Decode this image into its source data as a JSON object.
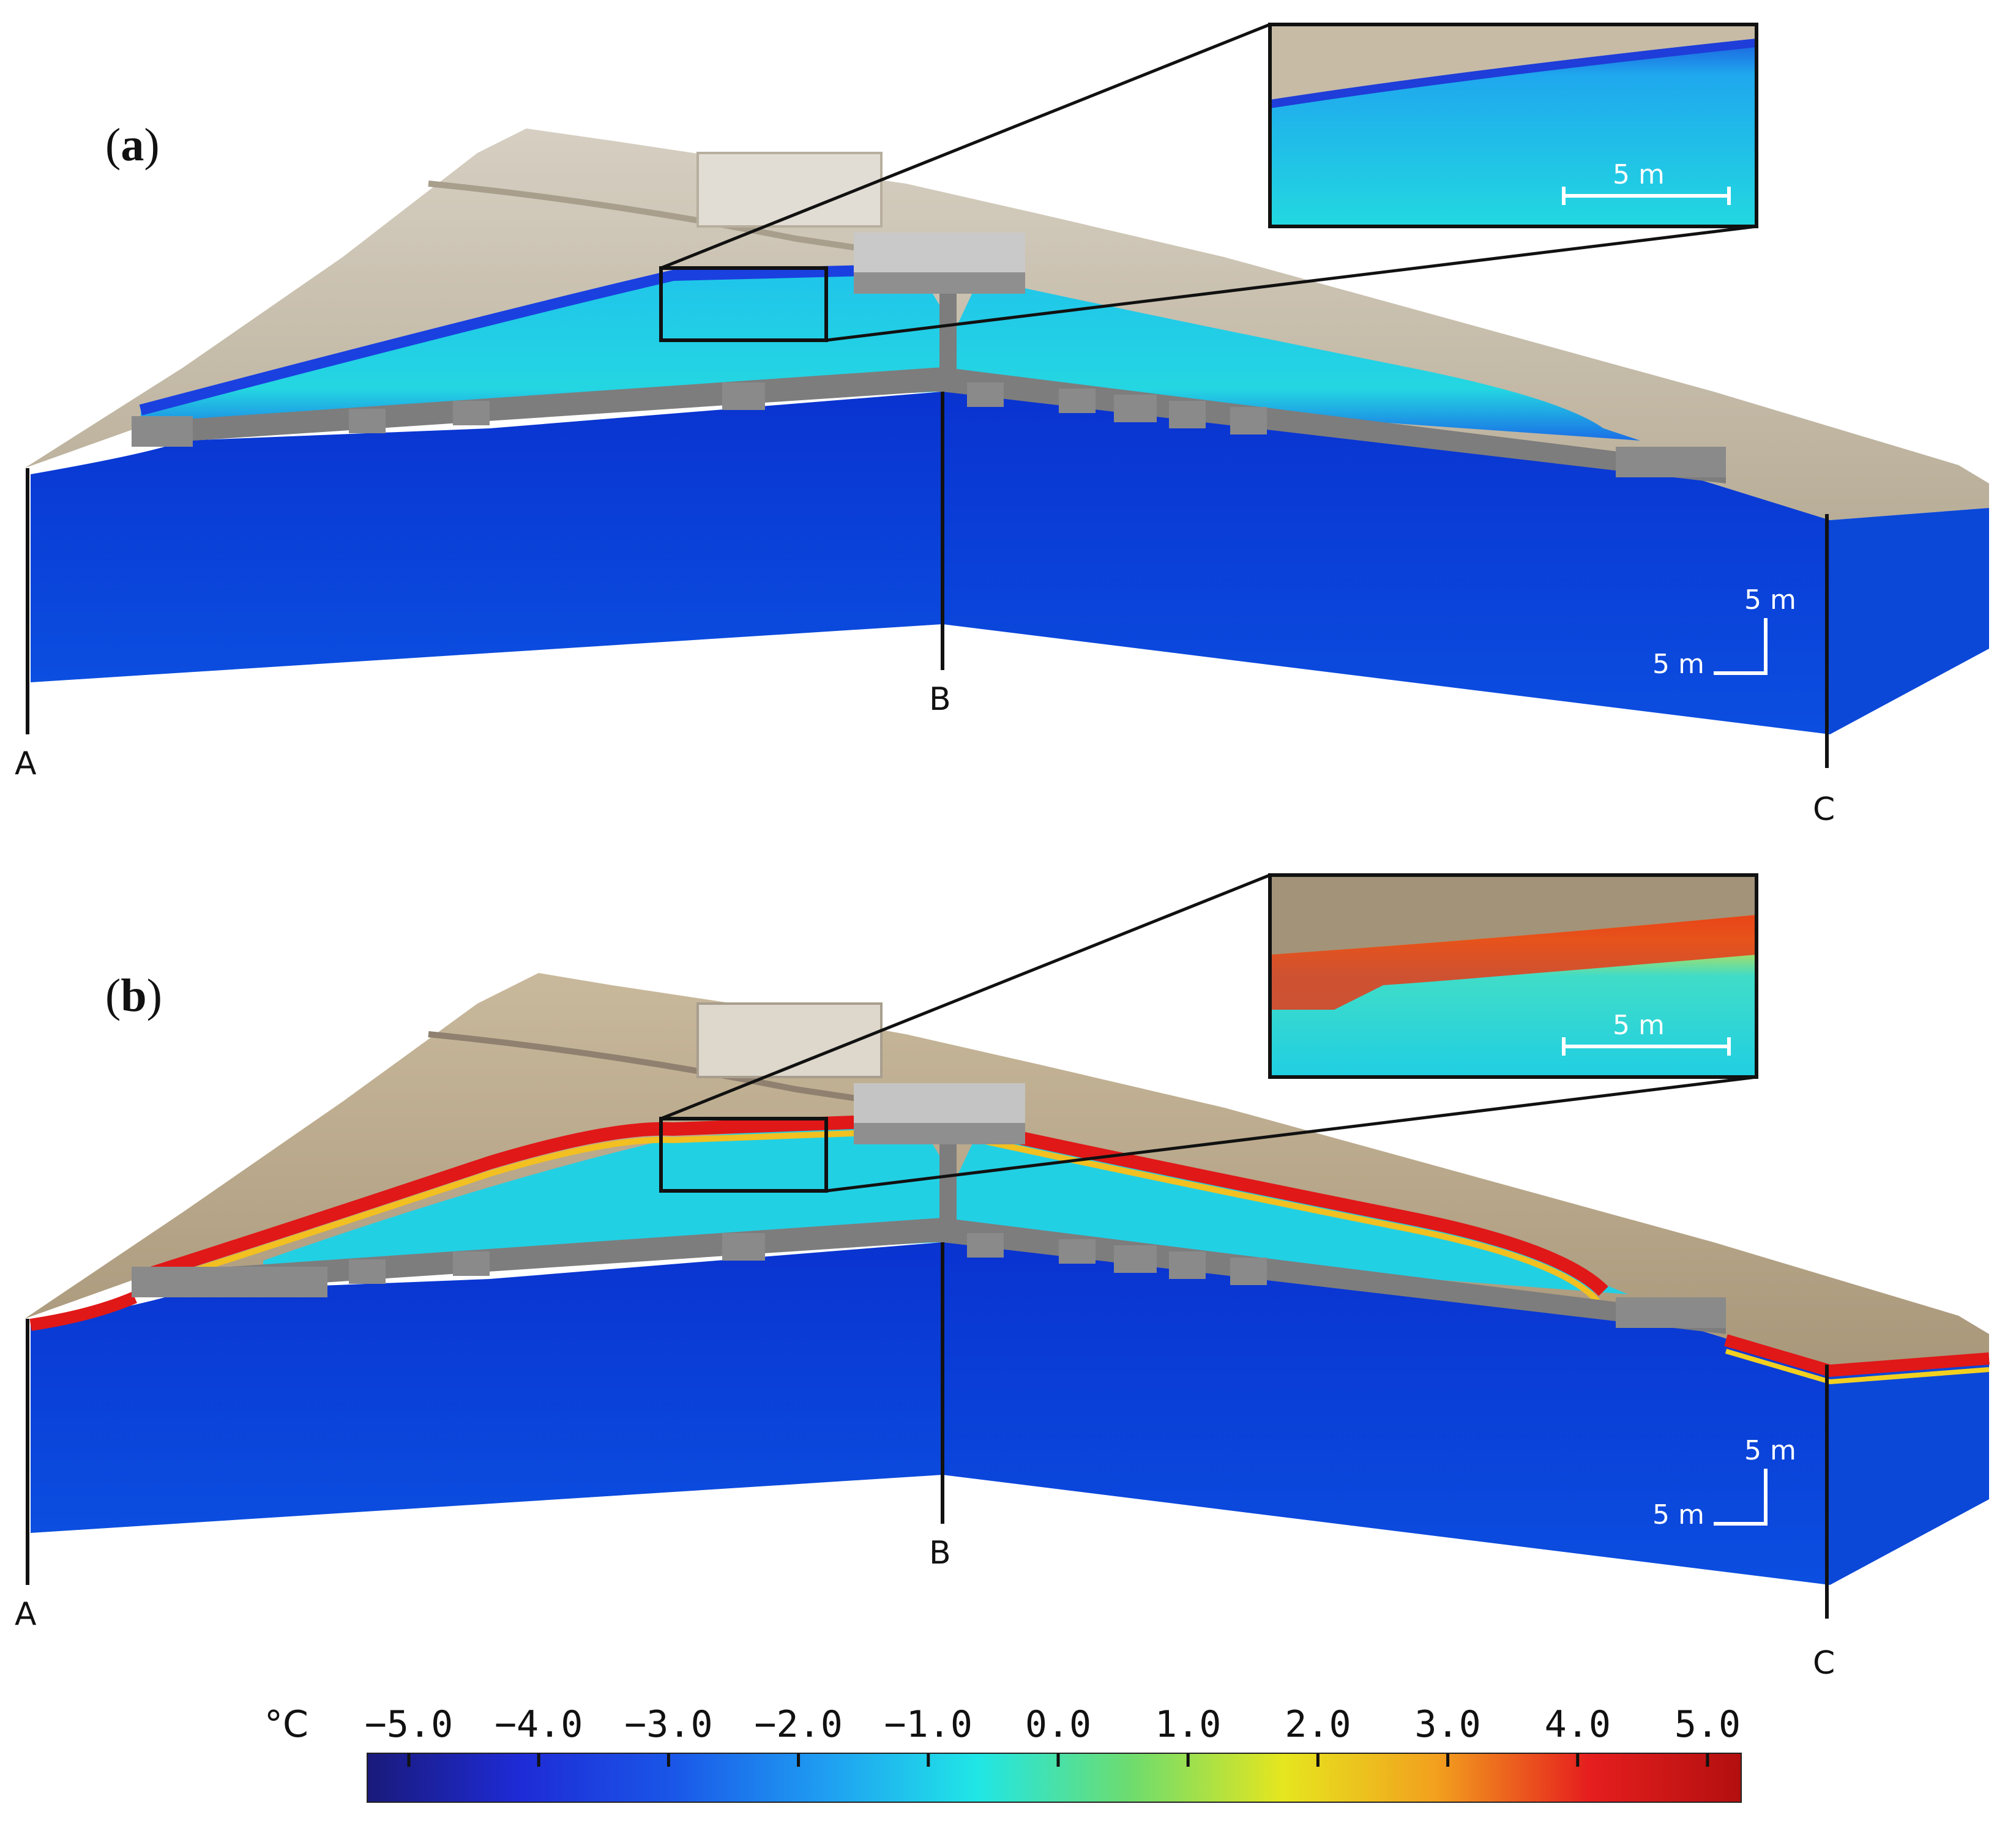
{
  "panels": [
    {
      "label_open": "(",
      "label_letter": "a",
      "label_close": ")",
      "points": [
        "A",
        "B",
        "C"
      ],
      "inset_scale": "5 m",
      "scale_vertical": "5 m",
      "scale_horizontal": "5 m",
      "surface_state": "cold"
    },
    {
      "label_open": "(",
      "label_letter": "b",
      "label_close": ")",
      "points": [
        "A",
        "B",
        "C"
      ],
      "inset_scale": "5 m",
      "scale_vertical": "5 m",
      "scale_horizontal": "5 m",
      "surface_state": "warm"
    }
  ],
  "colorbar": {
    "unit": "°C",
    "ticks": [
      "−5.0",
      "−4.0",
      "−3.0",
      "−2.0",
      "−1.0",
      "0.0",
      "1.0",
      "2.0",
      "3.0",
      "4.0",
      "5.0"
    ],
    "tick_values": [
      -5,
      -4,
      -3,
      -2,
      -1,
      0,
      1,
      2,
      3,
      4,
      5
    ],
    "min": -5,
    "max": 5,
    "colors": [
      "#1a1a7a",
      "#1e2bd6",
      "#1a56e8",
      "#1f9ef2",
      "#20e6e6",
      "#6edc6e",
      "#e6e61e",
      "#f2a01e",
      "#e61e1e",
      "#b30f0f"
    ]
  },
  "colors": {
    "section_blue": "#0b46d8",
    "deep_blue": "#0a2fc8",
    "tunnel_gray": "#7b7b7b",
    "terrain": "#c8c0b0",
    "cyan": "#1fd0e8",
    "warm_red": "#e01818"
  }
}
